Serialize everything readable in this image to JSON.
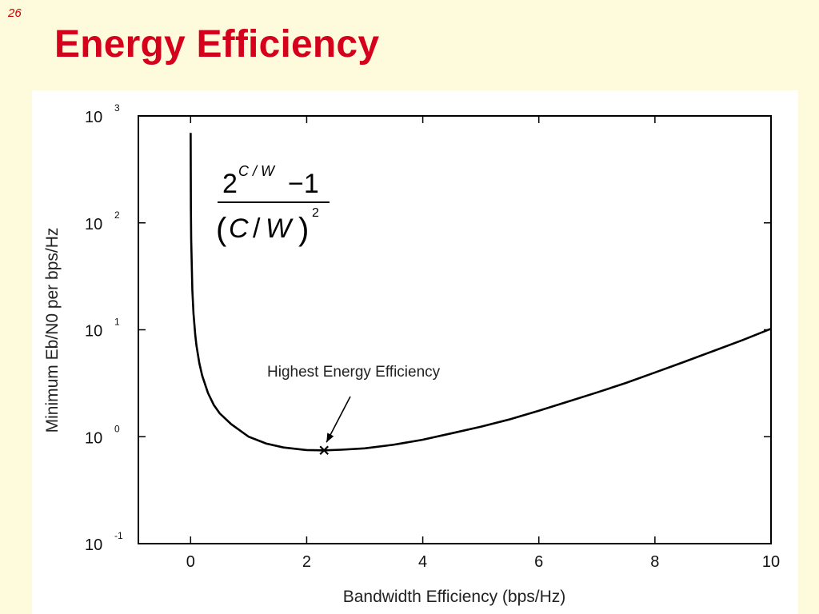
{
  "slide": {
    "number": "26",
    "title": "Energy Efficiency"
  },
  "colors": {
    "background": "#fdfbdc",
    "title": "#d4001c",
    "curve": "#000000"
  },
  "formula": {
    "numerator_base": "2",
    "numerator_exponent": "C / W",
    "numerator_minus": "−1",
    "denominator_paren_open": "(",
    "denominator_c": "C",
    "denominator_slash": "/",
    "denominator_w": "W",
    "denominator_paren_close": ")",
    "denominator_exponent": "2"
  },
  "chart_data": {
    "type": "line",
    "title": "",
    "xlabel": "Bandwidth Efficiency (bps/Hz)",
    "ylabel": "Minimum Eb/N0 per bps/Hz",
    "xlim": [
      -0.9,
      10
    ],
    "ylim": [
      0.1,
      1000
    ],
    "yscale": "log",
    "grid": false,
    "x_ticks": [
      "0",
      "2",
      "4",
      "6",
      "8",
      "10"
    ],
    "y_ticks": [
      {
        "base": "10",
        "exponent": "3"
      },
      {
        "base": "10",
        "exponent": "2"
      },
      {
        "base": "10",
        "exponent": "1"
      },
      {
        "base": "10",
        "exponent": "0"
      },
      {
        "base": "10",
        "exponent": "-1"
      }
    ],
    "series": [
      {
        "formula": "(2^(C/W) - 1) / (C/W)^2",
        "x": [
          0.001,
          0.005,
          0.01,
          0.03,
          0.05,
          0.08,
          0.1,
          0.15,
          0.2,
          0.3,
          0.4,
          0.5,
          0.7,
          1.0,
          1.3,
          1.6,
          2.0,
          2.3,
          2.6,
          3.0,
          3.5,
          4.0,
          4.5,
          5.0,
          5.5,
          6.0,
          6.5,
          7.0,
          7.5,
          8.0,
          8.5,
          9.0,
          9.5,
          10.0
        ],
        "y": [
          693.3,
          138.9,
          69.56,
          23.39,
          14.15,
          8.967,
          7.177,
          4.876,
          3.718,
          2.558,
          1.98,
          1.657,
          1.309,
          1.0,
          0.8636,
          0.7939,
          0.75,
          0.7459,
          0.7561,
          0.7778,
          0.842,
          0.9375,
          1.077,
          1.24,
          1.454,
          1.75,
          2.127,
          2.592,
          3.181,
          3.984,
          5.001,
          6.309,
          7.971,
          10.23
        ]
      }
    ],
    "annotation": {
      "text": "Highest Energy Efficiency",
      "marker": "x",
      "x": 2.3,
      "y": 0.746
    }
  }
}
